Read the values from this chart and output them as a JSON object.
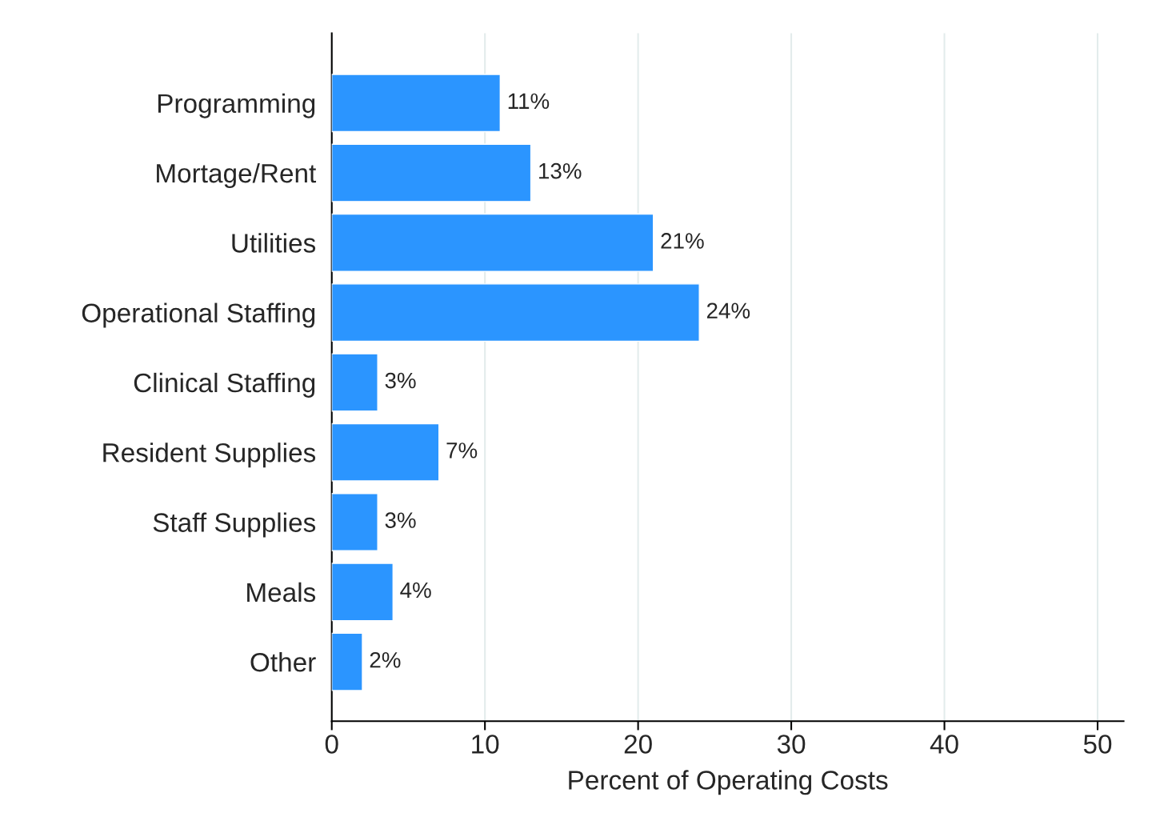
{
  "chart_data": {
    "type": "bar",
    "orientation": "horizontal",
    "xlabel": "Percent of Operating Costs",
    "categories": [
      "Programming",
      "Mortage/Rent",
      "Utilities",
      "Operational Staffing",
      "Clinical Staffing",
      "Resident Supplies",
      "Staff Supplies",
      "Meals",
      "Other"
    ],
    "values": [
      11,
      13,
      21,
      24,
      3,
      7,
      3,
      4,
      2
    ],
    "value_labels": [
      "11%",
      "13%",
      "21%",
      "24%",
      "3%",
      "7%",
      "3%",
      "4%",
      "2%"
    ],
    "color": "#2b95ff",
    "xlim": [
      0,
      51.7
    ],
    "xticks": [
      0,
      10,
      20,
      30,
      40,
      50
    ],
    "grid": "x",
    "legend": false
  }
}
